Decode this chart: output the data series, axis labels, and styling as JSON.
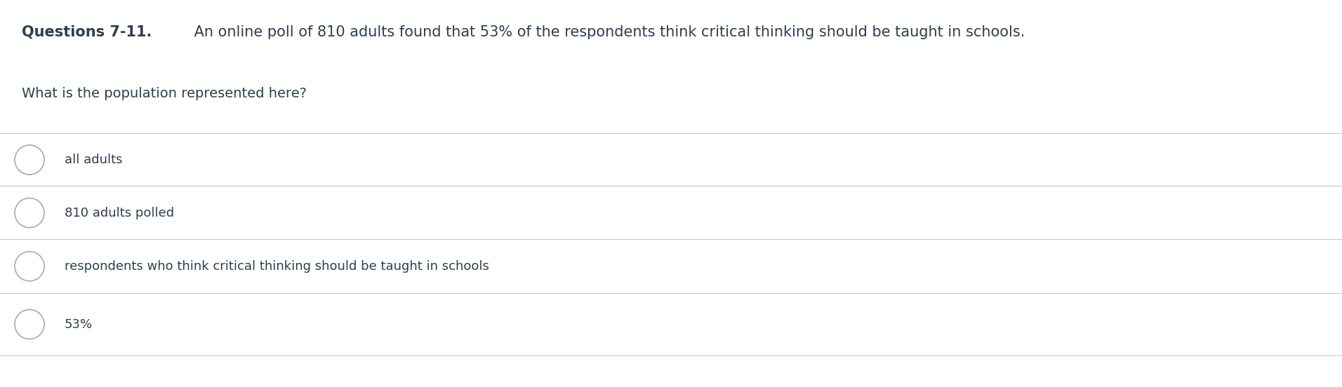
{
  "background_color": "#ffffff",
  "title_bold": "Questions 7-11.",
  "title_normal": " An online poll of 810 adults found that 53% of the respondents think critical thinking should be taught in schools.",
  "question": "What is the population represented here?",
  "options": [
    "all adults",
    "810 adults polled",
    "respondents who think critical thinking should be taught in schools",
    "53%"
  ],
  "text_color": "#2e3f50",
  "line_color": "#c8c8c8",
  "font_size_title": 15,
  "font_size_question": 14,
  "font_size_options": 13,
  "circle_color": "#aaaaaa",
  "circle_linewidth": 1.2
}
